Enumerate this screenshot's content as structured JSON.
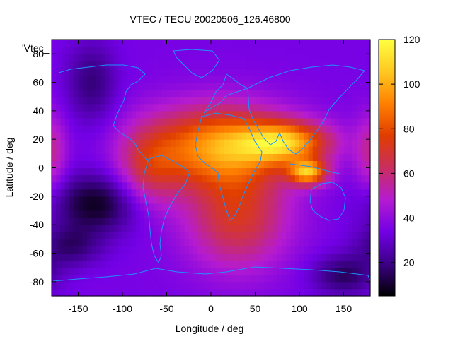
{
  "chart_data": {
    "type": "heatmap",
    "title": "VTEC / TECU 20020506_126.46800",
    "key_label": "'Vtec_",
    "xlabel": "Longitude / deg",
    "ylabel": "Latitude / deg",
    "xlim": [
      -180,
      180
    ],
    "ylim": [
      -90,
      90
    ],
    "x_ticks": [
      -150,
      -100,
      -50,
      0,
      50,
      100,
      150
    ],
    "y_ticks": [
      -80,
      -60,
      -40,
      -20,
      0,
      20,
      40,
      60,
      80
    ],
    "colorbar": {
      "min": 5,
      "max": 120,
      "ticks": [
        20,
        40,
        60,
        80,
        100,
        120
      ],
      "palette": [
        "#000000",
        "#3b0086",
        "#7300e6",
        "#b51bd1",
        "#c92e5f",
        "#e03d00",
        "#ff8000",
        "#ffc820",
        "#ffff40"
      ]
    },
    "field_model": {
      "background": 35,
      "peaks": [
        {
          "lon": 10,
          "lat": 15,
          "value": 95,
          "sigma_lon": 55,
          "sigma_lat": 20
        },
        {
          "lon": 85,
          "lat": 18,
          "value": 90,
          "sigma_lon": 35,
          "sigma_lat": 10
        },
        {
          "lon": 110,
          "lat": -3,
          "value": 95,
          "sigma_lon": 15,
          "sigma_lat": 6
        },
        {
          "lon": 30,
          "lat": -35,
          "value": 70,
          "sigma_lon": 40,
          "sigma_lat": 25
        },
        {
          "lon": -70,
          "lat": 0,
          "value": 60,
          "sigma_lon": 25,
          "sigma_lat": 20
        },
        {
          "lon": -180,
          "lat": 10,
          "value": 55,
          "sigma_lon": 12,
          "sigma_lat": 20
        },
        {
          "lon": -130,
          "lat": -25,
          "value": 8,
          "sigma_lon": 35,
          "sigma_lat": 15
        },
        {
          "lon": -135,
          "lat": 60,
          "value": 18,
          "sigma_lon": 20,
          "sigma_lat": 20
        },
        {
          "lon": -160,
          "lat": -55,
          "value": 18,
          "sigma_lon": 25,
          "sigma_lat": 10
        },
        {
          "lon": 150,
          "lat": -75,
          "value": 15,
          "sigma_lon": 25,
          "sigma_lat": 10
        }
      ]
    }
  }
}
